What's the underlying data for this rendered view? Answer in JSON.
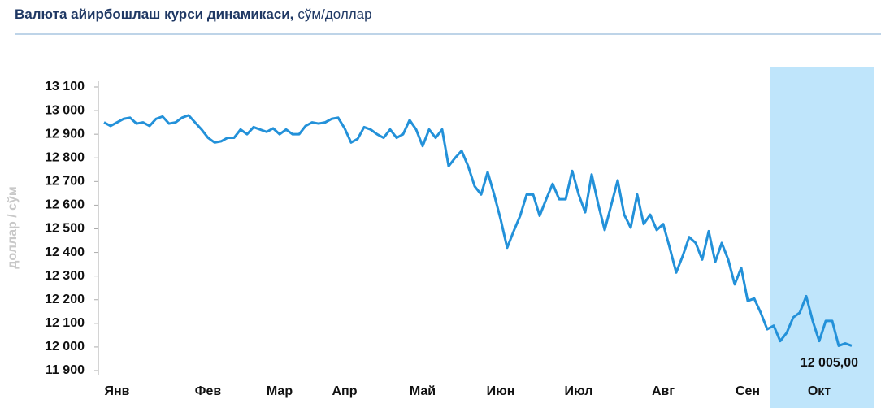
{
  "chart_data": {
    "type": "line",
    "title": "Валюта айирбошлаш курси динамикаси,",
    "subtitle": "сўм/доллар",
    "y_label": "доллар / сўм",
    "categories": [
      null,
      null,
      "Янв",
      null,
      null,
      null,
      null,
      null,
      null,
      null,
      null,
      null,
      null,
      null,
      null,
      null,
      "Фев",
      null,
      null,
      null,
      null,
      null,
      null,
      null,
      null,
      null,
      null,
      "Мар",
      null,
      null,
      null,
      null,
      null,
      null,
      null,
      null,
      null,
      "Апр",
      null,
      null,
      null,
      null,
      null,
      null,
      null,
      null,
      null,
      null,
      null,
      "Май",
      null,
      null,
      null,
      null,
      null,
      null,
      null,
      null,
      null,
      null,
      null,
      "Июн",
      null,
      null,
      null,
      null,
      null,
      null,
      null,
      null,
      null,
      null,
      null,
      "Июл",
      null,
      null,
      null,
      null,
      null,
      null,
      null,
      null,
      null,
      null,
      null,
      null,
      "Авг",
      null,
      null,
      null,
      null,
      null,
      null,
      null,
      null,
      null,
      null,
      null,
      null,
      "Сен",
      null,
      null,
      null,
      null,
      null,
      null,
      null,
      null,
      null,
      null,
      "Окт",
      null,
      null,
      null,
      null,
      null
    ],
    "series": [
      {
        "name": "сўм/доллар",
        "color": "#2391d9",
        "values": [
          12950,
          12935,
          12950,
          12965,
          12970,
          12945,
          12950,
          12935,
          12965,
          12975,
          12945,
          12950,
          12970,
          12980,
          12950,
          12920,
          12885,
          12865,
          12870,
          12885,
          12885,
          12920,
          12900,
          12930,
          12920,
          12910,
          12925,
          12900,
          12920,
          12900,
          12900,
          12935,
          12950,
          12945,
          12950,
          12965,
          12970,
          12925,
          12865,
          12880,
          12930,
          12920,
          12900,
          12885,
          12920,
          12885,
          12900,
          12960,
          12920,
          12850,
          12920,
          12885,
          12920,
          12765,
          12800,
          12830,
          12765,
          12680,
          12645,
          12740,
          12645,
          12540,
          12420,
          12490,
          12555,
          12645,
          12645,
          12555,
          12625,
          12690,
          12625,
          12625,
          12745,
          12645,
          12570,
          12730,
          12605,
          12495,
          12600,
          12705,
          12560,
          12505,
          12645,
          12520,
          12560,
          12495,
          12520,
          12420,
          12315,
          12385,
          12465,
          12440,
          12370,
          12490,
          12360,
          12440,
          12370,
          12265,
          12335,
          12195,
          12205,
          12145,
          12075,
          12090,
          12025,
          12060,
          12125,
          12145,
          12215,
          12110,
          12025,
          12110,
          12110,
          12005,
          12015,
          12005
        ]
      }
    ],
    "annotation": {
      "text": "12 005,00",
      "value": 12005
    },
    "ylim": [
      11900,
      13100
    ],
    "yticks": [
      {
        "value": 11900,
        "label": "11 900"
      },
      {
        "value": 12000,
        "label": "12 000"
      },
      {
        "value": 12100,
        "label": "12 100"
      },
      {
        "value": 12200,
        "label": "12 200"
      },
      {
        "value": 12300,
        "label": "12 300"
      },
      {
        "value": 12400,
        "label": "12 400"
      },
      {
        "value": 12500,
        "label": "12 500"
      },
      {
        "value": 12600,
        "label": "12 600"
      },
      {
        "value": 12700,
        "label": "12 700"
      },
      {
        "value": 12800,
        "label": "12 800"
      },
      {
        "value": 12900,
        "label": "12 900"
      },
      {
        "value": 13000,
        "label": "13 000"
      },
      {
        "value": 13100,
        "label": "13 100"
      }
    ],
    "grid": false
  }
}
